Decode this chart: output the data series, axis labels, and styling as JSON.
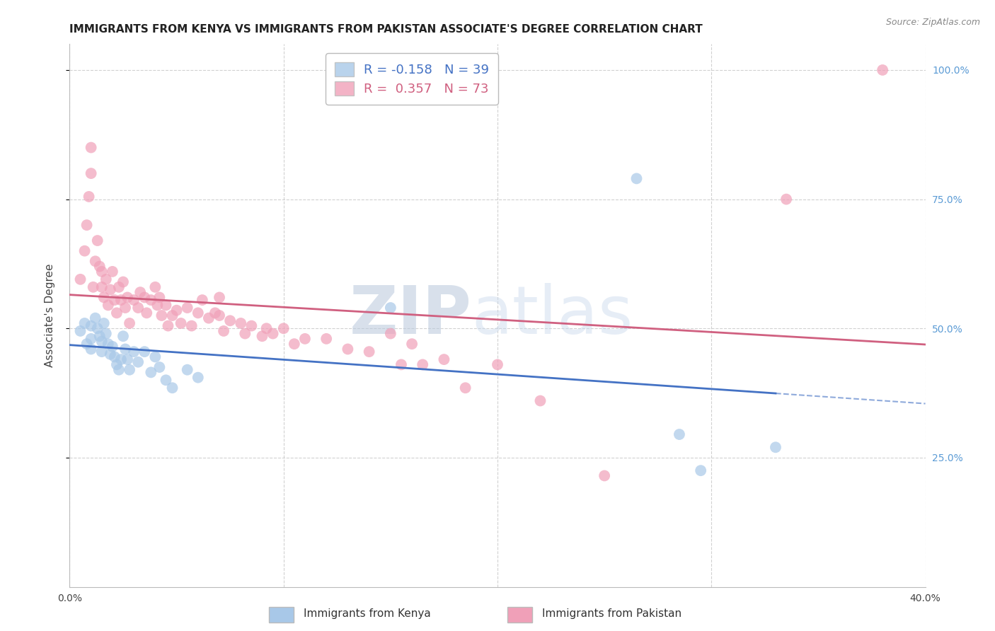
{
  "title": "IMMIGRANTS FROM KENYA VS IMMIGRANTS FROM PAKISTAN ASSOCIATE'S DEGREE CORRELATION CHART",
  "source": "Source: ZipAtlas.com",
  "ylabel": "Associate's Degree",
  "xlim": [
    0.0,
    0.4
  ],
  "ylim": [
    0.0,
    1.05
  ],
  "kenya_R": -0.158,
  "kenya_N": 39,
  "pakistan_R": 0.357,
  "pakistan_N": 73,
  "kenya_color": "#A8C8E8",
  "pakistan_color": "#F0A0B8",
  "kenya_line_color": "#4472C4",
  "pakistan_line_color": "#D06080",
  "watermark_zip": "ZIP",
  "watermark_atlas": "atlas",
  "bg_color": "#FFFFFF",
  "grid_color": "#CCCCCC",
  "right_axis_color": "#5B9BD5",
  "title_fontsize": 11,
  "label_fontsize": 11,
  "tick_fontsize": 10,
  "kenya_points": [
    [
      0.005,
      0.495
    ],
    [
      0.007,
      0.51
    ],
    [
      0.008,
      0.47
    ],
    [
      0.01,
      0.505
    ],
    [
      0.01,
      0.48
    ],
    [
      0.01,
      0.46
    ],
    [
      0.012,
      0.52
    ],
    [
      0.013,
      0.5
    ],
    [
      0.014,
      0.485
    ],
    [
      0.015,
      0.475
    ],
    [
      0.015,
      0.455
    ],
    [
      0.016,
      0.51
    ],
    [
      0.017,
      0.49
    ],
    [
      0.018,
      0.47
    ],
    [
      0.019,
      0.45
    ],
    [
      0.02,
      0.465
    ],
    [
      0.021,
      0.445
    ],
    [
      0.022,
      0.43
    ],
    [
      0.023,
      0.42
    ],
    [
      0.024,
      0.44
    ],
    [
      0.025,
      0.485
    ],
    [
      0.026,
      0.46
    ],
    [
      0.027,
      0.44
    ],
    [
      0.028,
      0.42
    ],
    [
      0.03,
      0.455
    ],
    [
      0.032,
      0.435
    ],
    [
      0.035,
      0.455
    ],
    [
      0.038,
      0.415
    ],
    [
      0.04,
      0.445
    ],
    [
      0.042,
      0.425
    ],
    [
      0.045,
      0.4
    ],
    [
      0.048,
      0.385
    ],
    [
      0.055,
      0.42
    ],
    [
      0.06,
      0.405
    ],
    [
      0.15,
      0.54
    ],
    [
      0.265,
      0.79
    ],
    [
      0.285,
      0.295
    ],
    [
      0.295,
      0.225
    ],
    [
      0.33,
      0.27
    ]
  ],
  "pakistan_points": [
    [
      0.005,
      0.595
    ],
    [
      0.007,
      0.65
    ],
    [
      0.008,
      0.7
    ],
    [
      0.009,
      0.755
    ],
    [
      0.01,
      0.8
    ],
    [
      0.01,
      0.85
    ],
    [
      0.011,
      0.58
    ],
    [
      0.012,
      0.63
    ],
    [
      0.013,
      0.67
    ],
    [
      0.014,
      0.62
    ],
    [
      0.015,
      0.58
    ],
    [
      0.015,
      0.61
    ],
    [
      0.016,
      0.56
    ],
    [
      0.017,
      0.595
    ],
    [
      0.018,
      0.545
    ],
    [
      0.019,
      0.575
    ],
    [
      0.02,
      0.61
    ],
    [
      0.021,
      0.555
    ],
    [
      0.022,
      0.53
    ],
    [
      0.023,
      0.58
    ],
    [
      0.024,
      0.555
    ],
    [
      0.025,
      0.59
    ],
    [
      0.026,
      0.54
    ],
    [
      0.027,
      0.56
    ],
    [
      0.028,
      0.51
    ],
    [
      0.03,
      0.555
    ],
    [
      0.032,
      0.54
    ],
    [
      0.033,
      0.57
    ],
    [
      0.035,
      0.56
    ],
    [
      0.036,
      0.53
    ],
    [
      0.038,
      0.555
    ],
    [
      0.04,
      0.58
    ],
    [
      0.041,
      0.545
    ],
    [
      0.042,
      0.56
    ],
    [
      0.043,
      0.525
    ],
    [
      0.045,
      0.545
    ],
    [
      0.046,
      0.505
    ],
    [
      0.048,
      0.525
    ],
    [
      0.05,
      0.535
    ],
    [
      0.052,
      0.51
    ],
    [
      0.055,
      0.54
    ],
    [
      0.057,
      0.505
    ],
    [
      0.06,
      0.53
    ],
    [
      0.062,
      0.555
    ],
    [
      0.065,
      0.52
    ],
    [
      0.068,
      0.53
    ],
    [
      0.07,
      0.56
    ],
    [
      0.07,
      0.525
    ],
    [
      0.072,
      0.495
    ],
    [
      0.075,
      0.515
    ],
    [
      0.08,
      0.51
    ],
    [
      0.082,
      0.49
    ],
    [
      0.085,
      0.505
    ],
    [
      0.09,
      0.485
    ],
    [
      0.092,
      0.5
    ],
    [
      0.095,
      0.49
    ],
    [
      0.1,
      0.5
    ],
    [
      0.105,
      0.47
    ],
    [
      0.11,
      0.48
    ],
    [
      0.12,
      0.48
    ],
    [
      0.13,
      0.46
    ],
    [
      0.14,
      0.455
    ],
    [
      0.15,
      0.49
    ],
    [
      0.155,
      0.43
    ],
    [
      0.16,
      0.47
    ],
    [
      0.165,
      0.43
    ],
    [
      0.175,
      0.44
    ],
    [
      0.185,
      0.385
    ],
    [
      0.2,
      0.43
    ],
    [
      0.22,
      0.36
    ],
    [
      0.25,
      0.215
    ],
    [
      0.38,
      1.0
    ],
    [
      0.335,
      0.75
    ]
  ]
}
